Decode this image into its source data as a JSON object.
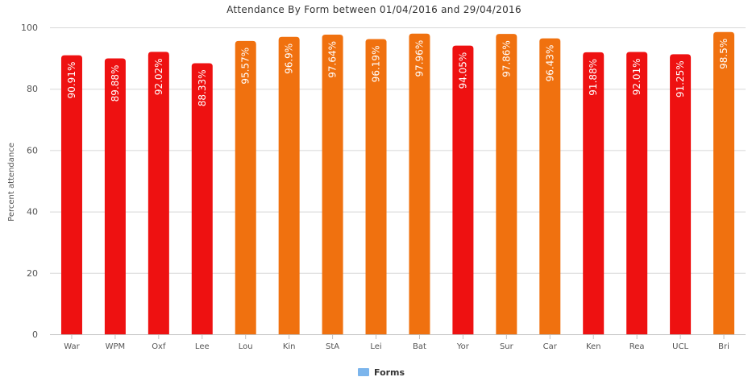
{
  "chart_data": {
    "type": "bar",
    "title": "Attendance By Form between 01/04/2016 and 29/04/2016",
    "xlabel": "",
    "ylabel": "Percent attendance",
    "ylim": [
      0,
      100
    ],
    "yticks": [
      0,
      20,
      40,
      60,
      80,
      100
    ],
    "grid": true,
    "legend": {
      "placement": "bottom-center",
      "entries": [
        {
          "name": "Forms",
          "color": "#7cb5ec"
        }
      ]
    },
    "categories": [
      "War",
      "WPM",
      "Oxf",
      "Lee",
      "Lou",
      "Kin",
      "StA",
      "Lei",
      "Bat",
      "Yor",
      "Sur",
      "Car",
      "Ken",
      "Rea",
      "UCL",
      "Bri"
    ],
    "values": [
      90.91,
      89.88,
      92.02,
      88.33,
      95.57,
      96.9,
      97.64,
      96.19,
      97.96,
      94.05,
      97.86,
      96.43,
      91.88,
      92.01,
      91.25,
      98.5
    ],
    "data_labels": [
      "90.91%",
      "89.88%",
      "92.02%",
      "88.33%",
      "95.57%",
      "96.9%",
      "97.64%",
      "96.19%",
      "97.96%",
      "94.05%",
      "97.86%",
      "96.43%",
      "91.88%",
      "92.01%",
      "91.25%",
      "98.5%"
    ],
    "bar_colors": [
      "#ee1111",
      "#ee1111",
      "#ee1111",
      "#ee1111",
      "#f0710f",
      "#f0710f",
      "#f0710f",
      "#f0710f",
      "#f0710f",
      "#ee1111",
      "#f0710f",
      "#f0710f",
      "#ee1111",
      "#ee1111",
      "#ee1111",
      "#f0710f"
    ]
  }
}
